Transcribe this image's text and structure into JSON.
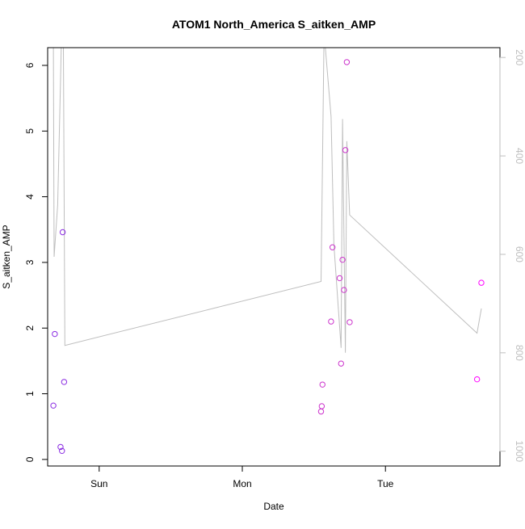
{
  "chart_data": {
    "type": "scatter",
    "title": "ATOM1 North_America S_aitken_AMP",
    "xlabel": "Date",
    "ylabel": "S_aitken_AMP",
    "x_axis": {
      "range": [
        -0.36,
        2.8
      ],
      "ticks": [
        {
          "value": 0,
          "label": "Sun"
        },
        {
          "value": 1,
          "label": "Mon"
        },
        {
          "value": 2,
          "label": "Tue"
        }
      ]
    },
    "y_axis": {
      "range": [
        -0.1,
        6.27
      ],
      "ticks": [
        {
          "value": 0,
          "label": "0"
        },
        {
          "value": 1,
          "label": "1"
        },
        {
          "value": 2,
          "label": "2"
        },
        {
          "value": 3,
          "label": "3"
        },
        {
          "value": 4,
          "label": "4"
        },
        {
          "value": 5,
          "label": "5"
        },
        {
          "value": 6,
          "label": "6"
        }
      ]
    },
    "y2_axis": {
      "range": [
        1030,
        180
      ],
      "ticks": [
        {
          "value": 200,
          "label": "200"
        },
        {
          "value": 400,
          "label": "400"
        },
        {
          "value": 600,
          "label": "600"
        },
        {
          "value": 800,
          "label": "800"
        },
        {
          "value": 1000,
          "label": "1000"
        }
      ],
      "color": "#bebebe"
    },
    "series": [
      {
        "marker": "circle-open",
        "axis": "left",
        "points": [
          {
            "x": -0.32,
            "y": 0.82,
            "color": "#8a2be2"
          },
          {
            "x": -0.31,
            "y": 1.91,
            "color": "#8a2be2"
          },
          {
            "x": -0.27,
            "y": 0.19,
            "color": "#8a2be2"
          },
          {
            "x": -0.26,
            "y": 0.13,
            "color": "#8a2be2"
          },
          {
            "x": -0.255,
            "y": 3.46,
            "color": "#8a2be2"
          },
          {
            "x": -0.245,
            "y": 1.18,
            "color": "#8a2be2"
          },
          {
            "x": 1.55,
            "y": 0.73,
            "color": "#cc33cc"
          },
          {
            "x": 1.555,
            "y": 0.81,
            "color": "#cc33cc"
          },
          {
            "x": 1.56,
            "y": 1.14,
            "color": "#cc33cc"
          },
          {
            "x": 1.62,
            "y": 2.1,
            "color": "#cc33cc"
          },
          {
            "x": 1.63,
            "y": 3.23,
            "color": "#cc33cc"
          },
          {
            "x": 1.68,
            "y": 2.76,
            "color": "#cc33cc"
          },
          {
            "x": 1.69,
            "y": 1.46,
            "color": "#cc33cc"
          },
          {
            "x": 1.7,
            "y": 3.04,
            "color": "#cc33cc"
          },
          {
            "x": 1.71,
            "y": 2.58,
            "color": "#cc33cc"
          },
          {
            "x": 1.72,
            "y": 4.71,
            "color": "#cc33cc"
          },
          {
            "x": 1.73,
            "y": 6.05,
            "color": "#cc33cc"
          },
          {
            "x": 1.75,
            "y": 2.09,
            "color": "#cc33cc"
          },
          {
            "x": 2.64,
            "y": 1.22,
            "color": "#ff00ff"
          },
          {
            "x": 2.67,
            "y": 2.69,
            "color": "#ff00ff"
          }
        ]
      },
      {
        "type": "line",
        "axis": "right",
        "color": "#bebebe",
        "points": [
          {
            "x": -0.32,
            "y": 180
          },
          {
            "x": -0.315,
            "y": 605
          },
          {
            "x": -0.29,
            "y": 500
          },
          {
            "x": -0.27,
            "y": 250
          },
          {
            "x": -0.265,
            "y": 180
          },
          {
            "x": -0.25,
            "y": 180
          },
          {
            "x": -0.24,
            "y": 785
          },
          {
            "x": 1.55,
            "y": 655
          },
          {
            "x": 1.57,
            "y": 180
          },
          {
            "x": 1.58,
            "y": 180
          },
          {
            "x": 1.62,
            "y": 320
          },
          {
            "x": 1.64,
            "y": 580
          },
          {
            "x": 1.69,
            "y": 790
          },
          {
            "x": 1.7,
            "y": 325
          },
          {
            "x": 1.72,
            "y": 800
          },
          {
            "x": 1.73,
            "y": 370
          },
          {
            "x": 1.75,
            "y": 520
          },
          {
            "x": 2.64,
            "y": 760
          },
          {
            "x": 2.67,
            "y": 710
          }
        ]
      }
    ]
  }
}
